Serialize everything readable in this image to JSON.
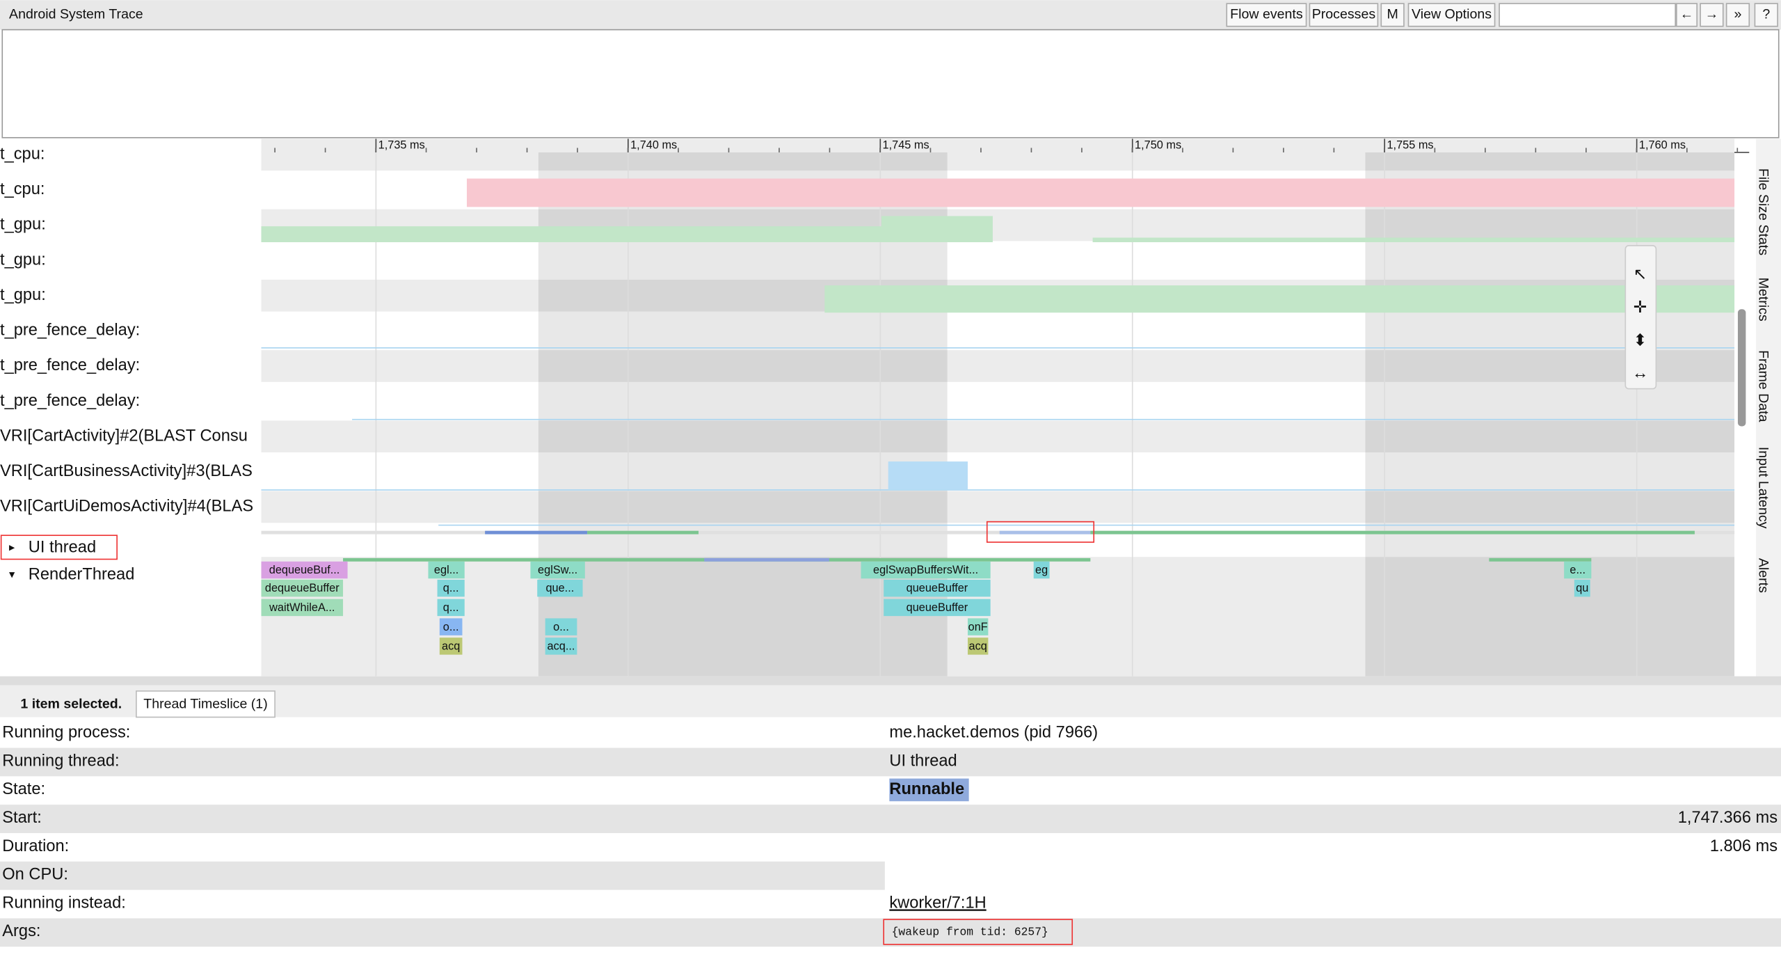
{
  "header": {
    "title": "Android System Trace",
    "buttons": [
      "Flow events",
      "Processes",
      "M",
      "View Options",
      "←",
      "→",
      "»",
      "?"
    ]
  },
  "ruler": {
    "ticks": [
      "1,735 ms",
      "1,740 ms",
      "1,745 ms",
      "1,750 ms",
      "1,755 ms",
      "1,760 ms"
    ]
  },
  "tracks": {
    "labels": [
      "t_cpu:",
      "t_cpu:",
      "t_gpu:",
      "t_gpu:",
      "t_gpu:",
      "t_pre_fence_delay:",
      "t_pre_fence_delay:",
      "t_pre_fence_delay:",
      "VRI[CartActivity]#2(BLAST Consu",
      "VRI[CartBusinessActivity]#3(BLAS",
      "VRI[CartUiDemosActivity]#4(BLAS"
    ],
    "threads": [
      "UI thread",
      "RenderThread"
    ]
  },
  "slices": [
    "dequeueBuf...",
    "dequeueBuffer",
    "waitWhileA...",
    "egl...",
    "q...",
    "q...",
    "o...",
    "acq",
    "eglSw...",
    "que...",
    "o...",
    "acq...",
    "eglSwapBuffersWit...",
    "queueBuffer",
    "queueBuffer",
    "onF",
    "acq",
    "eg",
    "e...",
    "qu"
  ],
  "side_tabs": [
    "File Size Stats",
    "Metrics",
    "Frame Data",
    "Input Latency",
    "Alerts"
  ],
  "details": {
    "summary": "1 item selected.",
    "tab": "Thread Timeslice (1)",
    "rows": [
      [
        "Running process:",
        "me.hacket.demos (pid 7966)"
      ],
      [
        "Running thread:",
        "UI thread"
      ],
      [
        "State:",
        "Runnable"
      ],
      [
        "Start:",
        "1,747.366 ms"
      ],
      [
        "Duration:",
        "1.806 ms"
      ],
      [
        "On CPU:",
        ""
      ],
      [
        "Running instead:",
        "kworker/7:1H"
      ],
      [
        "Args:",
        "{wakeup from tid: 6257}"
      ]
    ]
  }
}
